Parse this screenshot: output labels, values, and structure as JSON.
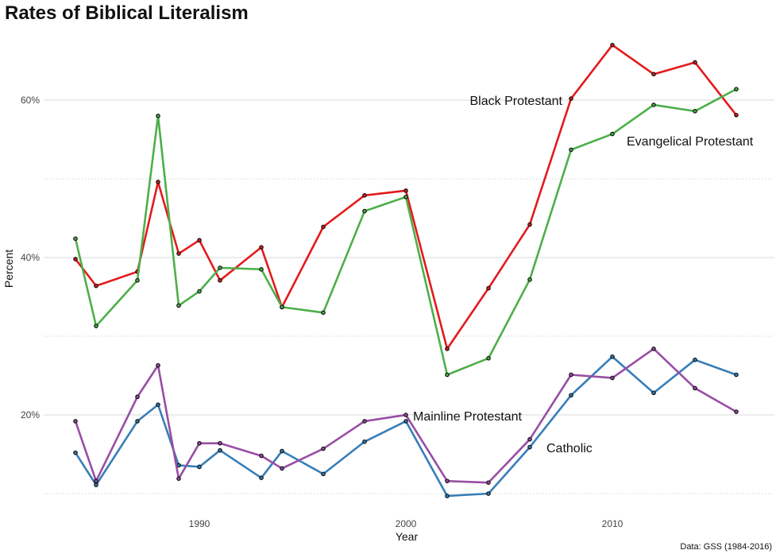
{
  "chart_data": {
    "type": "line",
    "title": "Rates of Biblical Literalism",
    "xlabel": "Year",
    "ylabel": "Percent",
    "caption": "Data: GSS (1984-2016)",
    "xlim": [
      1983.5,
      2016.8
    ],
    "ylim": [
      8.5,
      70
    ],
    "x_ticks": [
      1990,
      2000,
      2010
    ],
    "x_tick_labels": [
      "1990",
      "2000",
      "2010"
    ],
    "y_ticks": [
      20,
      40,
      60
    ],
    "y_tick_labels": [
      "20%",
      "40%",
      "60%"
    ],
    "y_minor_ticks": [
      10,
      30,
      50
    ],
    "grid": true,
    "legend": "direct labels",
    "x": [
      1984,
      1985,
      1987,
      1988,
      1989,
      1990,
      1991,
      1993,
      1994,
      1996,
      1998,
      2000,
      2002,
      2004,
      2006,
      2008,
      2010,
      2012,
      2014,
      2016
    ],
    "series": [
      {
        "name": "Black Protestant",
        "color": "#e41a1c",
        "values": [
          39.8,
          36.4,
          38.2,
          49.6,
          40.5,
          42.2,
          37.1,
          41.3,
          33.7,
          43.9,
          47.9,
          48.5,
          28.4,
          36.1,
          44.2,
          60.2,
          67.0,
          63.3,
          64.8,
          58.1
        ]
      },
      {
        "name": "Evangelical Protestant",
        "color": "#4daf4a",
        "values": [
          42.4,
          31.3,
          37.1,
          58.0,
          33.9,
          35.7,
          38.7,
          38.5,
          33.7,
          33.0,
          45.9,
          47.7,
          25.1,
          27.2,
          37.2,
          53.7,
          55.7,
          59.4,
          58.6,
          61.4
        ]
      },
      {
        "name": "Catholic",
        "color": "#377eb8",
        "values": [
          15.2,
          11.1,
          19.2,
          21.3,
          13.6,
          13.4,
          15.5,
          12.0,
          15.4,
          12.5,
          16.6,
          19.2,
          9.7,
          10.0,
          15.9,
          22.5,
          27.4,
          22.8,
          27.0,
          25.1
        ]
      },
      {
        "name": "Mainline Protestant",
        "color": "#984ea3",
        "values": [
          19.2,
          11.6,
          22.3,
          26.3,
          11.9,
          16.4,
          16.4,
          14.8,
          13.2,
          15.7,
          19.2,
          20.0,
          11.6,
          11.4,
          16.9,
          25.1,
          24.7,
          28.4,
          23.4,
          20.4
        ]
      }
    ]
  }
}
